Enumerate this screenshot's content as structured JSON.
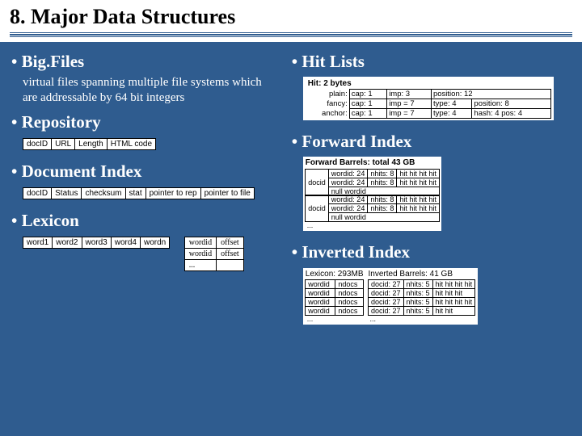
{
  "title": "8. Major Data Structures",
  "left": {
    "bigfiles": {
      "heading": "• Big.Files",
      "desc": "virtual files spanning multiple file systems which are addressable by 64 bit integers"
    },
    "repository": {
      "heading": "• Repository",
      "cells": [
        "docID",
        "URL",
        "Length",
        "HTML code"
      ]
    },
    "docindex": {
      "heading": "• Document Index",
      "cells": [
        "docID",
        "Status",
        "checksum",
        "stat",
        "pointer to rep",
        "pointer to file"
      ]
    },
    "lexicon": {
      "heading": "• Lexicon",
      "words": [
        "word1",
        "word2",
        "word3",
        "word4",
        "wordn"
      ],
      "table": [
        [
          "wordid",
          "offset"
        ],
        [
          "wordid",
          "offset"
        ],
        [
          "...",
          ""
        ]
      ]
    }
  },
  "right": {
    "hitlists": {
      "heading": "• Hit Lists",
      "title": "Hit: 2 bytes",
      "rows": [
        {
          "label": "plain:",
          "cells": [
            "cap: 1",
            "imp: 3",
            "",
            "position: 12"
          ]
        },
        {
          "label": "fancy:",
          "cells": [
            "cap: 1",
            "imp = 7",
            "type: 4",
            "position: 8"
          ]
        },
        {
          "label": "anchor:",
          "cells": [
            "cap: 1",
            "imp = 7",
            "type: 4",
            "hash: 4  pos: 4"
          ]
        }
      ]
    },
    "forward": {
      "heading": "• Forward Index",
      "title": "Forward Barrels: total 43 GB",
      "block": {
        "docid": "docid",
        "rows": [
          [
            "wordid: 24",
            "nhits: 8",
            "hit hit hit hit"
          ],
          [
            "wordid: 24",
            "nhits: 8",
            "hit hit hit hit"
          ],
          [
            "null wordid",
            "",
            ""
          ]
        ]
      }
    },
    "inverted": {
      "heading": "• Inverted Index",
      "lex_title": "Lexicon: 293MB",
      "bar_title": "Inverted Barrels: 41 GB",
      "lex_rows": [
        [
          "wordid",
          "ndocs"
        ],
        [
          "wordid",
          "ndocs"
        ],
        [
          "wordid",
          "ndocs"
        ],
        [
          "wordid",
          "ndocs"
        ]
      ],
      "bar_rows": [
        [
          "docid: 27",
          "nhits: 5",
          "hit hit hit hit"
        ],
        [
          "docid: 27",
          "nhits: 5",
          "hit hit hit"
        ],
        [
          "docid: 27",
          "nhits: 5",
          "hit hit hit hit"
        ],
        [
          "docid: 27",
          "nhits: 5",
          "hit hit"
        ]
      ]
    }
  }
}
